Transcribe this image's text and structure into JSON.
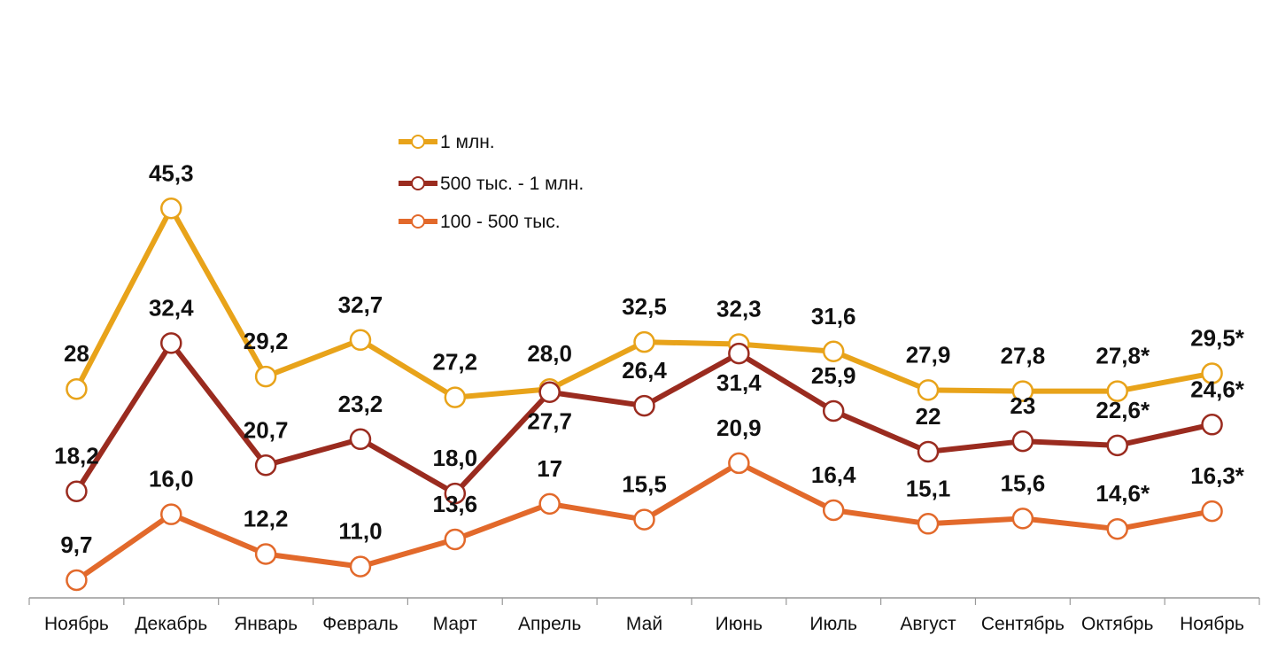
{
  "chart_data": {
    "type": "line",
    "title": "",
    "xlabel": "",
    "ylabel": "",
    "ylim": [
      8,
      65
    ],
    "grid": false,
    "legend_position": "top-center",
    "categories": [
      "Ноябрь",
      "Декабрь",
      "Январь",
      "Февраль",
      "Март",
      "Апрель",
      "Май",
      "Июнь",
      "Июль",
      "Август",
      "Сентябрь",
      "Октябрь",
      "Ноябрь"
    ],
    "series": [
      {
        "name": "1 млн.",
        "color": "#E8A31A",
        "values": [
          28,
          45.3,
          29.2,
          32.7,
          27.2,
          28.0,
          32.5,
          32.3,
          31.6,
          27.9,
          27.8,
          27.8,
          29.5
        ],
        "labels": [
          "28",
          "45,3",
          "29,2",
          "32,7",
          "27,2",
          "28,0",
          "32,5",
          "32,3",
          "31,6",
          "27,9",
          "27,8",
          "27,8*",
          "29,5*"
        ]
      },
      {
        "name": "500 тыс. - 1 млн.",
        "color": "#9A2B1F",
        "values": [
          18.2,
          32.4,
          20.7,
          23.2,
          18.0,
          27.7,
          26.4,
          31.4,
          25.9,
          22,
          23,
          22.6,
          24.6
        ],
        "labels": [
          "18,2",
          "32,4",
          "20,7",
          "23,2",
          "18,0",
          "27,7",
          "26,4",
          "31,4",
          "25,9",
          "22",
          "23",
          "22,6*",
          "24,6*"
        ]
      },
      {
        "name": "100 - 500 тыс.",
        "color": "#E2692B",
        "values": [
          9.7,
          16.0,
          12.2,
          11.0,
          13.6,
          17,
          15.5,
          20.9,
          16.4,
          15.1,
          15.6,
          14.6,
          16.3
        ],
        "labels": [
          "9,7",
          "16,0",
          "12,2",
          "11,0",
          "13,6",
          "17",
          "15,5",
          "20,9",
          "16,4",
          "15,1",
          "15,6",
          "14,6*",
          "16,3*"
        ]
      }
    ]
  }
}
